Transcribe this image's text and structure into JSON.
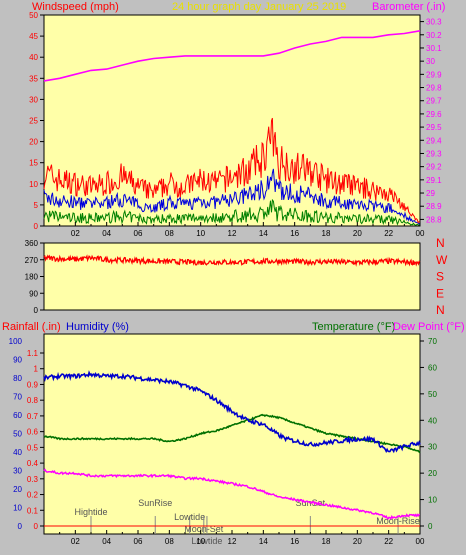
{
  "header": {
    "left_label": "Windspeed (mph)",
    "center_label": "24 hour graph day   January 25 2019",
    "right_label": "Barometer (.in)"
  },
  "wind_panel": {
    "left_ticks": [
      "0",
      "5",
      "10",
      "15",
      "20",
      "25",
      "30",
      "35",
      "40",
      "45",
      "50"
    ],
    "right_ticks": [
      "28.8",
      "28.9",
      "29",
      "29.1",
      "29.2",
      "29.3",
      "29.4",
      "29.5",
      "29.6",
      "29.7",
      "29.8",
      "29.9",
      "30",
      "30.1",
      "30.2",
      "30.3"
    ],
    "x_ticks": [
      "02",
      "04",
      "06",
      "08",
      "10",
      "12",
      "14",
      "16",
      "18",
      "20",
      "22",
      "00"
    ]
  },
  "direction_panel": {
    "left_ticks": [
      "360",
      "270",
      "180",
      "90",
      "0"
    ],
    "right_letters": [
      "N",
      "W",
      "S",
      "E",
      "N"
    ]
  },
  "bottom_header": {
    "rainfall_label": "Rainfall (.in)",
    "humidity_label": "Humidity (%)",
    "temperature_label": "Temperature (°F)",
    "dewpoint_label": "Dew Point (°F)"
  },
  "bottom_panel": {
    "humidity_ticks": [
      "0",
      "10",
      "20",
      "30",
      "40",
      "50",
      "60",
      "70",
      "80",
      "90",
      "100"
    ],
    "rain_ticks": [
      "0",
      "0.1",
      "0.2",
      "0.3",
      "0.4",
      "0.5",
      "0.6",
      "0.7",
      "0.8",
      "0.9",
      "1",
      "1.1"
    ],
    "temp_ticks": [
      "0",
      "10",
      "20",
      "30",
      "40",
      "50",
      "60",
      "70"
    ],
    "x_ticks": [
      "02",
      "04",
      "06",
      "08",
      "10",
      "12",
      "14",
      "16",
      "18",
      "20",
      "22",
      "00"
    ],
    "events": [
      {
        "label": "Hightide",
        "hour": 3.0
      },
      {
        "label": "SunRise",
        "hour": 7.1
      },
      {
        "label": "Lowtide",
        "hour": 9.3
      },
      {
        "label": "Moon-Set",
        "hour": 10.2
      },
      {
        "label": "Lowtide",
        "hour": 10.4
      },
      {
        "label": "SunSet",
        "hour": 17.0
      },
      {
        "label": "Moon-Rise",
        "hour": 22.6
      }
    ]
  },
  "colors": {
    "plot_bg": "#ffffa8",
    "header_yellow": "#e8e000",
    "wind_gust": "#ff0000",
    "wind_avg": "#0000dd",
    "wind_low": "#008000",
    "barometer": "#ff00ff",
    "direction": "#ff0000",
    "humidity": "#0000cc",
    "temperature": "#007000",
    "dewpoint": "#ff00ff",
    "rain_axis": "#ff0000",
    "temp_axis": "#007000"
  },
  "chart_data": [
    {
      "type": "line",
      "x_unit": "hour",
      "xlim": [
        0,
        24
      ],
      "ylim": [
        0,
        50
      ],
      "y2lim": [
        28.75,
        30.35
      ],
      "series": [
        {
          "name": "Windspeed",
          "axis": "left",
          "x": [
            0,
            1,
            2,
            3,
            4,
            5,
            6,
            7,
            8,
            9,
            10,
            11,
            12,
            13,
            14,
            14.5,
            15,
            16,
            17,
            18,
            19,
            20,
            21,
            22,
            23,
            23.5,
            24
          ],
          "values": [
            16,
            14,
            13,
            12,
            13,
            15,
            12,
            10,
            13,
            12,
            14,
            13,
            15,
            17,
            21,
            27,
            20,
            18,
            17,
            14,
            13,
            12,
            11,
            10,
            6,
            3,
            1
          ]
        },
        {
          "name": "Barometer",
          "axis": "right",
          "x": [
            0,
            1,
            2,
            3,
            4,
            5,
            6,
            7,
            8,
            9,
            10,
            11,
            12,
            13,
            14,
            15,
            16,
            17,
            18,
            19,
            20,
            21,
            22,
            23,
            24
          ],
          "values": [
            29.85,
            29.87,
            29.9,
            29.93,
            29.94,
            29.97,
            30.0,
            30.02,
            30.03,
            30.04,
            30.04,
            30.04,
            30.04,
            30.04,
            30.04,
            30.06,
            30.1,
            30.13,
            30.15,
            30.18,
            30.18,
            30.18,
            30.2,
            30.21,
            30.23
          ]
        }
      ]
    },
    {
      "type": "line",
      "x_unit": "hour",
      "xlim": [
        0,
        24
      ],
      "ylim": [
        0,
        360
      ],
      "series": [
        {
          "name": "Wind Direction",
          "x": [
            0,
            1,
            2,
            3,
            4,
            5,
            6,
            7,
            8,
            9,
            10,
            11,
            12,
            13,
            14,
            15,
            16,
            17,
            18,
            19,
            20,
            21,
            22,
            23,
            24
          ],
          "values": [
            280,
            275,
            272,
            280,
            270,
            268,
            265,
            262,
            260,
            258,
            255,
            258,
            256,
            258,
            262,
            262,
            260,
            258,
            260,
            258,
            255,
            258,
            262,
            258,
            255
          ]
        }
      ]
    },
    {
      "type": "line",
      "x_unit": "hour",
      "xlim": [
        0,
        24
      ],
      "ylim": [
        0,
        100
      ],
      "y2lim": [
        0,
        1.15
      ],
      "y3lim": [
        -5,
        75
      ],
      "series": [
        {
          "name": "Humidity",
          "axis": "left",
          "x": [
            0,
            1,
            2,
            3,
            4,
            5,
            6,
            7,
            8,
            9,
            10,
            11,
            12,
            13,
            14,
            15,
            15.5,
            16,
            17,
            18,
            19,
            20,
            21,
            22,
            23,
            24
          ],
          "values": [
            80,
            81,
            81,
            82,
            81,
            81,
            80,
            79,
            78,
            76,
            73,
            68,
            62,
            57,
            55,
            49,
            47,
            46,
            44,
            45,
            46,
            47,
            47,
            40,
            43,
            45
          ]
        },
        {
          "name": "Temperature",
          "axis": "temp",
          "x": [
            0,
            1,
            2,
            3,
            4,
            5,
            6,
            7,
            8,
            9,
            10,
            11,
            12,
            13,
            14,
            15,
            16,
            17,
            18,
            19,
            20,
            21,
            22,
            23,
            24
          ],
          "values": [
            34,
            33,
            33,
            33,
            33,
            33,
            33,
            33,
            32,
            33,
            35,
            36,
            38,
            40,
            42,
            41,
            39,
            37,
            35,
            34,
            33,
            32,
            31,
            30,
            28
          ]
        },
        {
          "name": "Dew Point",
          "axis": "temp",
          "x": [
            0,
            1,
            2,
            3,
            4,
            5,
            6,
            7,
            8,
            9,
            10,
            11,
            12,
            13,
            14,
            15,
            16,
            17,
            18,
            19,
            20,
            21,
            22,
            23,
            24
          ],
          "values": [
            21,
            20,
            20,
            19,
            19,
            19,
            19,
            19,
            19,
            18,
            18,
            17,
            16,
            15,
            13,
            11,
            10,
            9,
            8,
            7,
            6,
            5,
            3,
            4,
            4
          ]
        },
        {
          "name": "Rainfall",
          "axis": "rain",
          "x": [
            0,
            24
          ],
          "values": [
            0,
            0
          ]
        }
      ]
    }
  ]
}
